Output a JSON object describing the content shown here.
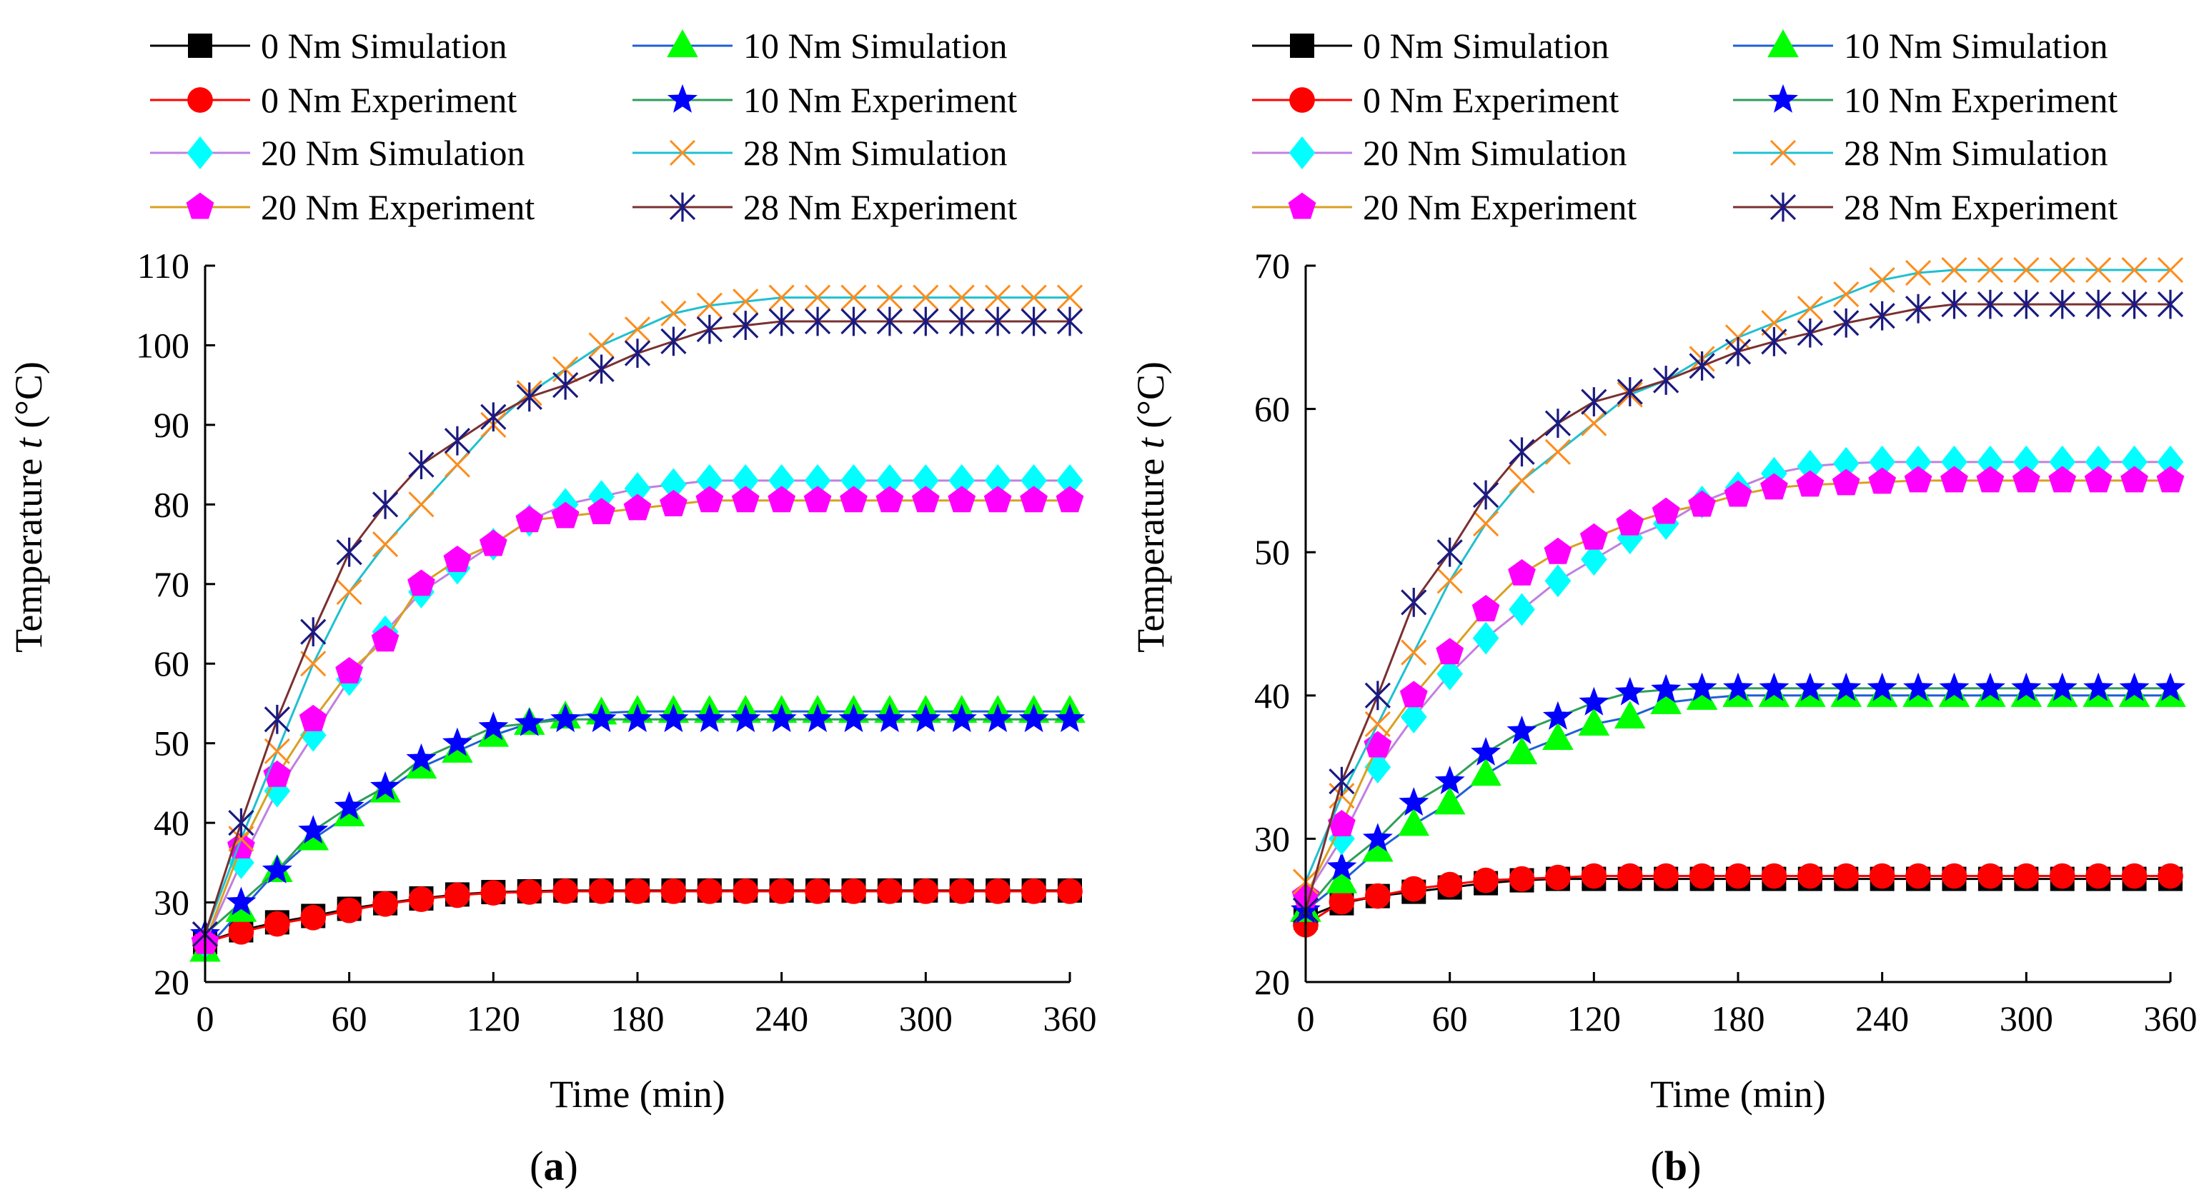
{
  "figure": {
    "caption_left": "(a)",
    "caption_right": "(b)"
  },
  "legend_labels": {
    "s0": "0 Nm   Simulation",
    "e0": "0 Nm   Experiment",
    "s10": "10 Nm Simulation",
    "e10": "10 Nm Experiment",
    "s20": "20 Nm Simulation",
    "e20": "20 Nm Experiment",
    "s28": "28 Nm Simulation",
    "e28": "28 Nm Experiment"
  },
  "series_styles": {
    "s0": {
      "line": "#000000",
      "marker": "#000000",
      "shape": "square"
    },
    "e0": {
      "line": "#ff0000",
      "marker": "#ff0000",
      "shape": "circle"
    },
    "s10": {
      "line": "#1f5fd6",
      "marker": "#00ff00",
      "shape": "triangle"
    },
    "e10": {
      "line": "#2e9e5a",
      "marker": "#0000ff",
      "shape": "star"
    },
    "s20": {
      "line": "#c080e0",
      "marker": "#00ffff",
      "shape": "diamond"
    },
    "e20": {
      "line": "#d9a020",
      "marker": "#ff00ff",
      "shape": "pentagon"
    },
    "s28": {
      "line": "#20c0d0",
      "marker": "#ff8c1a",
      "shape": "x"
    },
    "e28": {
      "line": "#7a3030",
      "marker": "#1a1a80",
      "shape": "asterisk"
    }
  },
  "chart_data": [
    {
      "type": "line",
      "panel": "(a)",
      "xlabel": "Time (min)",
      "ylabel": "Temperature t (°C)",
      "xlim": [
        0,
        360
      ],
      "ylim": [
        20,
        110
      ],
      "xticks": [
        0,
        60,
        120,
        180,
        240,
        300,
        360
      ],
      "yticks": [
        20,
        30,
        40,
        50,
        60,
        70,
        80,
        90,
        100,
        110
      ],
      "grid": false,
      "legend": "top",
      "x": [
        0,
        15,
        30,
        45,
        60,
        75,
        90,
        105,
        120,
        135,
        150,
        165,
        180,
        195,
        210,
        225,
        240,
        255,
        270,
        285,
        300,
        315,
        330,
        345,
        360
      ],
      "series": [
        {
          "key": "s0",
          "name": "0 Nm Simulation",
          "values": [
            25,
            26.5,
            27.5,
            28.3,
            29.2,
            29.9,
            30.5,
            31.0,
            31.3,
            31.4,
            31.5,
            31.5,
            31.5,
            31.5,
            31.5,
            31.5,
            31.5,
            31.5,
            31.5,
            31.5,
            31.5,
            31.5,
            31.5,
            31.5,
            31.5
          ]
        },
        {
          "key": "e0",
          "name": "0 Nm Experiment",
          "values": [
            25,
            26.3,
            27.3,
            28.1,
            29.0,
            29.8,
            30.4,
            30.9,
            31.2,
            31.3,
            31.4,
            31.4,
            31.4,
            31.4,
            31.4,
            31.4,
            31.4,
            31.4,
            31.4,
            31.4,
            31.4,
            31.4,
            31.4,
            31.4,
            31.4
          ]
        },
        {
          "key": "s10",
          "name": "10 Nm Simulation",
          "values": [
            24,
            29,
            34,
            38,
            41,
            44,
            47,
            49,
            51,
            52.5,
            53.3,
            53.8,
            54,
            54,
            54,
            54,
            54,
            54,
            54,
            54,
            54,
            54,
            54,
            54,
            54
          ]
        },
        {
          "key": "e10",
          "name": "10 Nm Experiment",
          "values": [
            26,
            30,
            34,
            39,
            42,
            44.5,
            48,
            50,
            52,
            52.5,
            53,
            53,
            53,
            53,
            53,
            53,
            53,
            53,
            53,
            53,
            53,
            53,
            53,
            53,
            53
          ]
        },
        {
          "key": "s20",
          "name": "20 Nm Simulation",
          "values": [
            25,
            35,
            44,
            51,
            58,
            64,
            69,
            72,
            75,
            78,
            80,
            81,
            82,
            82.5,
            83,
            83,
            83,
            83,
            83,
            83,
            83,
            83,
            83,
            83,
            83
          ]
        },
        {
          "key": "e20",
          "name": "20 Nm Experiment",
          "values": [
            25,
            37,
            46,
            53,
            59,
            63,
            70,
            73,
            75,
            78,
            78.5,
            79,
            79.5,
            80,
            80.5,
            80.5,
            80.5,
            80.5,
            80.5,
            80.5,
            80.5,
            80.5,
            80.5,
            80.5,
            80.5
          ]
        },
        {
          "key": "s28",
          "name": "28 Nm Simulation",
          "values": [
            26,
            38,
            49,
            60,
            69,
            75,
            80,
            85,
            90,
            94,
            97,
            100,
            102,
            104,
            105,
            105.5,
            106,
            106,
            106,
            106,
            106,
            106,
            106,
            106,
            106
          ]
        },
        {
          "key": "e28",
          "name": "28 Nm Experiment",
          "values": [
            26,
            40,
            53,
            64,
            74,
            80,
            85,
            88,
            91,
            93.5,
            95,
            97,
            99,
            100.5,
            102,
            102.5,
            103,
            103,
            103,
            103,
            103,
            103,
            103,
            103,
            103
          ]
        }
      ]
    },
    {
      "type": "line",
      "panel": "(b)",
      "xlabel": "Time (min)",
      "ylabel": "Temperature t (°C)",
      "xlim": [
        0,
        360
      ],
      "ylim": [
        20,
        70
      ],
      "xticks": [
        0,
        60,
        120,
        180,
        240,
        300,
        360
      ],
      "yticks": [
        20,
        30,
        40,
        50,
        60,
        70
      ],
      "grid": false,
      "legend": "top",
      "x": [
        0,
        15,
        30,
        45,
        60,
        75,
        90,
        105,
        120,
        135,
        150,
        165,
        180,
        195,
        210,
        225,
        240,
        255,
        270,
        285,
        300,
        315,
        330,
        345,
        360
      ],
      "series": [
        {
          "key": "s0",
          "name": "0 Nm Simulation",
          "values": [
            24.5,
            25.5,
            26,
            26.3,
            26.6,
            26.9,
            27.1,
            27.2,
            27.2,
            27.2,
            27.2,
            27.2,
            27.2,
            27.2,
            27.2,
            27.2,
            27.2,
            27.2,
            27.2,
            27.2,
            27.2,
            27.2,
            27.2,
            27.2,
            27.2
          ]
        },
        {
          "key": "e0",
          "name": "0 Nm Experiment",
          "values": [
            24,
            25.6,
            26,
            26.5,
            26.8,
            27.1,
            27.2,
            27.3,
            27.4,
            27.4,
            27.4,
            27.4,
            27.4,
            27.4,
            27.4,
            27.4,
            27.4,
            27.4,
            27.4,
            27.4,
            27.4,
            27.4,
            27.4,
            27.4,
            27.4
          ]
        },
        {
          "key": "s10",
          "name": "10 Nm Simulation",
          "values": [
            25,
            27,
            29.2,
            31,
            32.5,
            34.5,
            36,
            37,
            38,
            38.5,
            39.5,
            39.8,
            40,
            40,
            40,
            40,
            40,
            40,
            40,
            40,
            40,
            40,
            40,
            40,
            40
          ]
        },
        {
          "key": "e10",
          "name": "10 Nm Experiment",
          "values": [
            25,
            28,
            30,
            32.5,
            34,
            36,
            37.5,
            38.5,
            39.5,
            40.2,
            40.4,
            40.5,
            40.5,
            40.5,
            40.5,
            40.5,
            40.5,
            40.5,
            40.5,
            40.5,
            40.5,
            40.5,
            40.5,
            40.5,
            40.5
          ]
        },
        {
          "key": "s20",
          "name": "20 Nm Simulation",
          "values": [
            26,
            30,
            35,
            38.5,
            41.5,
            44,
            46,
            48,
            49.5,
            51,
            52,
            53.5,
            54.5,
            55.5,
            56,
            56.2,
            56.3,
            56.3,
            56.3,
            56.3,
            56.3,
            56.3,
            56.3,
            56.3,
            56.3
          ]
        },
        {
          "key": "e20",
          "name": "20 Nm Experiment",
          "values": [
            26,
            31,
            36.5,
            40,
            43,
            46,
            48.5,
            50,
            51,
            52,
            52.8,
            53.3,
            54,
            54.5,
            54.7,
            54.8,
            54.9,
            55,
            55,
            55,
            55,
            55,
            55,
            55,
            55
          ]
        },
        {
          "key": "s28",
          "name": "28 Nm Simulation",
          "values": [
            27,
            33,
            38,
            43,
            48,
            52,
            55,
            57,
            59,
            61,
            62,
            63.5,
            65,
            66,
            67,
            68,
            69,
            69.5,
            69.7,
            69.7,
            69.7,
            69.7,
            69.7,
            69.7,
            69.7
          ]
        },
        {
          "key": "e28",
          "name": "28 Nm Experiment",
          "values": [
            25,
            34,
            40,
            46.5,
            50,
            54,
            57,
            59,
            60.5,
            61.2,
            62,
            63,
            64,
            64.7,
            65.3,
            66,
            66.5,
            67,
            67.3,
            67.3,
            67.3,
            67.3,
            67.3,
            67.3,
            67.3
          ]
        }
      ]
    }
  ]
}
